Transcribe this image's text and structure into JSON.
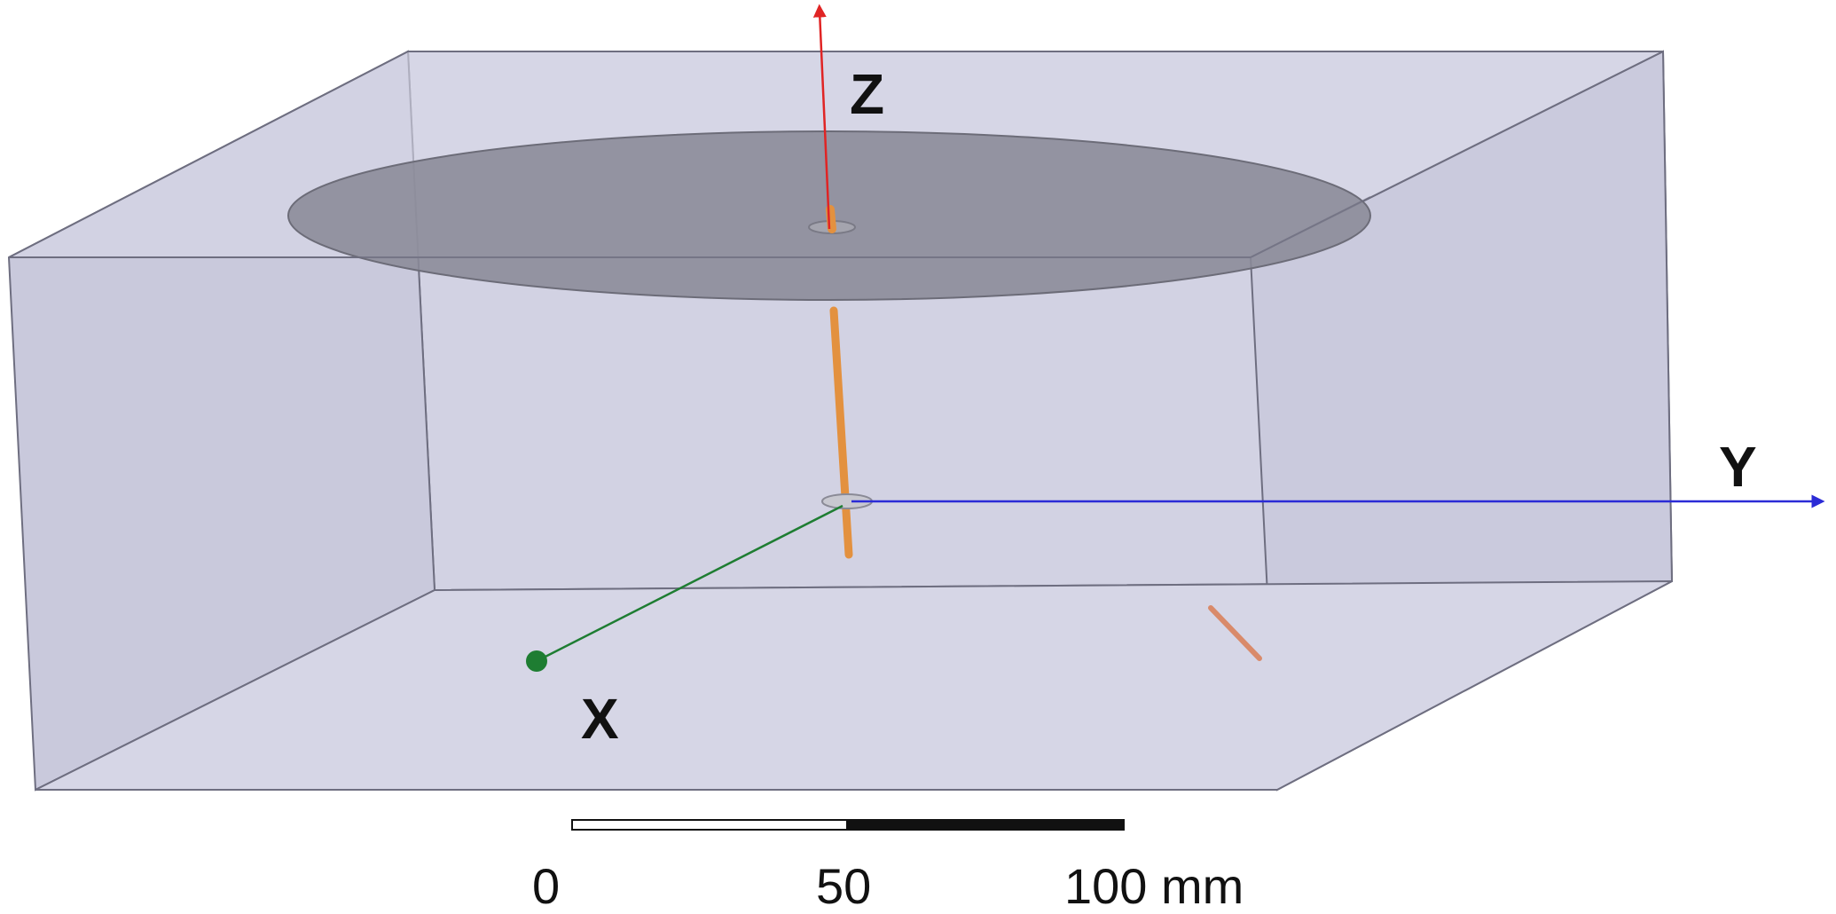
{
  "axes": {
    "x": {
      "label": "X",
      "color": "#1e7d32"
    },
    "y": {
      "label": "Y",
      "color": "#2b2bd6"
    },
    "z": {
      "label": "Z",
      "color": "#e02424"
    }
  },
  "scale_bar": {
    "ticks": [
      "0",
      "50",
      "100 mm"
    ]
  },
  "colors": {
    "box_fill": "#d2d2e3",
    "box_edge": "#6e6e80",
    "disk_fill": "#8a8a97",
    "probe": "#e3913f",
    "feed_element": "#d98a6a"
  }
}
